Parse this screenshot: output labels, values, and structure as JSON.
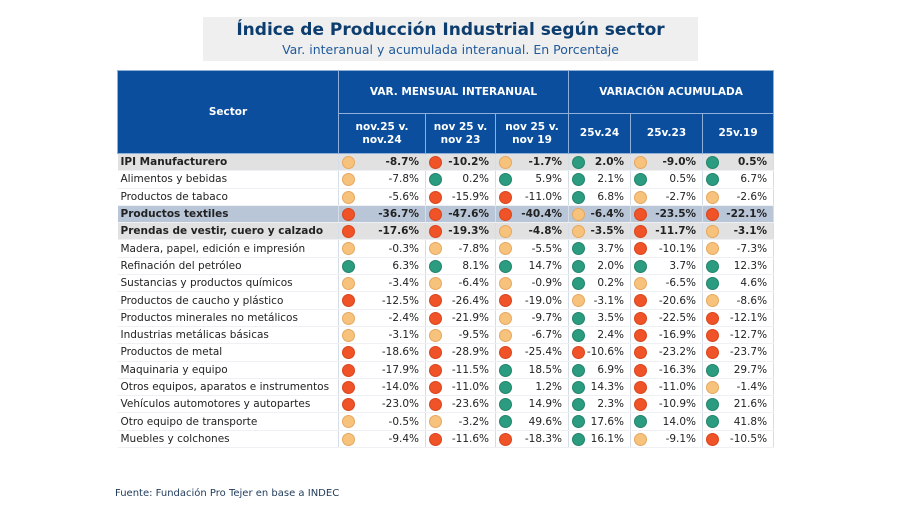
{
  "title": "Índice de Producción Industrial según sector",
  "subtitle": "Var. interanual y acumulada interanual. En Porcentaje",
  "footer": "Fuente: Fundación Pro Tejer en base a INDEC",
  "colors": {
    "header": "#0b4e9e",
    "yellow": "#f6c27c",
    "red": "#ef5327",
    "green": "#2b9c80"
  },
  "chart_data": {
    "type": "table",
    "header": {
      "sector": "Sector",
      "group1": "VAR. MENSUAL INTERANUAL",
      "group2": "VARIACIÓN ACUMULADA",
      "columns": [
        "nov.25 v. nov.24",
        "nov 25 v. nov 23",
        "nov 25 v. nov 19",
        "25v.24",
        "25v.23",
        "25v.19"
      ]
    },
    "rows": [
      {
        "sector": "IPI Manufacturero",
        "style": "bold",
        "values": [
          "-8.7%",
          "-10.2%",
          "-1.7%",
          "2.0%",
          "-9.0%",
          "0.5%"
        ],
        "status": [
          "y",
          "r",
          "y",
          "g",
          "y",
          "g"
        ]
      },
      {
        "sector": "Alimentos y bebidas",
        "values": [
          "-7.8%",
          "0.2%",
          "5.9%",
          "2.1%",
          "0.5%",
          "6.7%"
        ],
        "status": [
          "y",
          "g",
          "g",
          "g",
          "g",
          "g"
        ]
      },
      {
        "sector": "Productos de tabaco",
        "values": [
          "-5.6%",
          "-15.9%",
          "-11.0%",
          "6.8%",
          "-2.7%",
          "-2.6%"
        ],
        "status": [
          "y",
          "r",
          "r",
          "g",
          "y",
          "y"
        ]
      },
      {
        "sector": "Productos textiles",
        "style": "highlight",
        "values": [
          "-36.7%",
          "-47.6%",
          "-40.4%",
          "-6.4%",
          "-23.5%",
          "-22.1%"
        ],
        "status": [
          "r",
          "r",
          "r",
          "y",
          "r",
          "r"
        ]
      },
      {
        "sector": "Prendas de vestir, cuero y calzado",
        "style": "bold",
        "values": [
          "-17.6%",
          "-19.3%",
          "-4.8%",
          "-3.5%",
          "-11.7%",
          "-3.1%"
        ],
        "status": [
          "r",
          "r",
          "y",
          "y",
          "r",
          "y"
        ]
      },
      {
        "sector": "Madera, papel, edición e impresión",
        "values": [
          "-0.3%",
          "-7.8%",
          "-5.5%",
          "3.7%",
          "-10.1%",
          "-7.3%"
        ],
        "status": [
          "y",
          "y",
          "y",
          "g",
          "r",
          "y"
        ]
      },
      {
        "sector": "Refinación del petróleo",
        "values": [
          "6.3%",
          "8.1%",
          "14.7%",
          "2.0%",
          "3.7%",
          "12.3%"
        ],
        "status": [
          "g",
          "g",
          "g",
          "g",
          "g",
          "g"
        ]
      },
      {
        "sector": "Sustancias y productos químicos",
        "values": [
          "-3.4%",
          "-6.4%",
          "-0.9%",
          "0.2%",
          "-6.5%",
          "4.6%"
        ],
        "status": [
          "y",
          "y",
          "y",
          "g",
          "y",
          "g"
        ]
      },
      {
        "sector": "Productos de caucho y plástico",
        "values": [
          "-12.5%",
          "-26.4%",
          "-19.0%",
          "-3.1%",
          "-20.6%",
          "-8.6%"
        ],
        "status": [
          "r",
          "r",
          "r",
          "y",
          "r",
          "y"
        ]
      },
      {
        "sector": "Productos minerales no metálicos",
        "values": [
          "-2.4%",
          "-21.9%",
          "-9.7%",
          "3.5%",
          "-22.5%",
          "-12.1%"
        ],
        "status": [
          "y",
          "r",
          "y",
          "g",
          "r",
          "r"
        ]
      },
      {
        "sector": "Industrias metálicas básicas",
        "values": [
          "-3.1%",
          "-9.5%",
          "-6.7%",
          "2.4%",
          "-16.9%",
          "-12.7%"
        ],
        "status": [
          "y",
          "y",
          "y",
          "g",
          "r",
          "r"
        ]
      },
      {
        "sector": "Productos de metal",
        "values": [
          "-18.6%",
          "-28.9%",
          "-25.4%",
          "-10.6%",
          "-23.2%",
          "-23.7%"
        ],
        "status": [
          "r",
          "r",
          "r",
          "r",
          "r",
          "r"
        ]
      },
      {
        "sector": "Maquinaria y equipo",
        "values": [
          "-17.9%",
          "-11.5%",
          "18.5%",
          "6.9%",
          "-16.3%",
          "29.7%"
        ],
        "status": [
          "r",
          "r",
          "g",
          "g",
          "r",
          "g"
        ]
      },
      {
        "sector": "Otros equipos, aparatos e instrumentos",
        "values": [
          "-14.0%",
          "-11.0%",
          "1.2%",
          "14.3%",
          "-11.0%",
          "-1.4%"
        ],
        "status": [
          "r",
          "r",
          "g",
          "g",
          "r",
          "y"
        ]
      },
      {
        "sector": "Vehículos automotores y autopartes",
        "values": [
          "-23.0%",
          "-23.6%",
          "14.9%",
          "2.3%",
          "-10.9%",
          "21.6%"
        ],
        "status": [
          "r",
          "r",
          "g",
          "g",
          "r",
          "g"
        ]
      },
      {
        "sector": "Otro equipo de transporte",
        "values": [
          "-0.5%",
          "-3.2%",
          "49.6%",
          "17.6%",
          "14.0%",
          "41.8%"
        ],
        "status": [
          "y",
          "y",
          "g",
          "g",
          "g",
          "g"
        ]
      },
      {
        "sector": "Muebles y colchones",
        "values": [
          "-9.4%",
          "-11.6%",
          "-18.3%",
          "16.1%",
          "-9.1%",
          "-10.5%"
        ],
        "status": [
          "y",
          "r",
          "r",
          "g",
          "y",
          "r"
        ]
      }
    ]
  }
}
